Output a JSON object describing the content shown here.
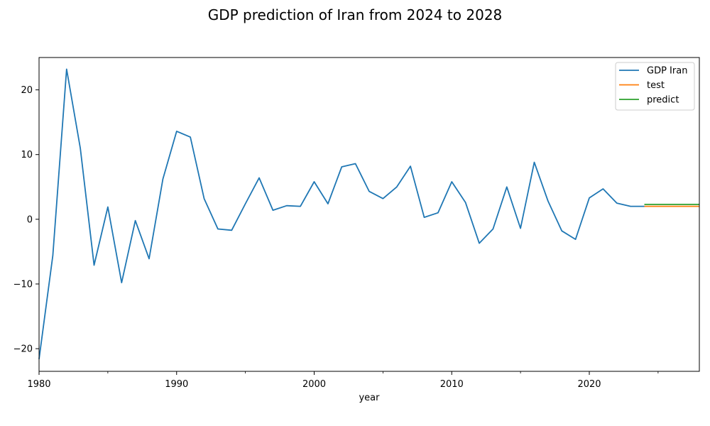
{
  "chart_data": {
    "type": "line",
    "title": "GDP prediction of Iran from 2024 to 2028",
    "xlabel": "year",
    "ylabel": "",
    "xlim": [
      1980,
      2028
    ],
    "ylim": [
      -23.5,
      25
    ],
    "x_ticks": [
      1980,
      1990,
      2000,
      2010,
      2020
    ],
    "x_minor_ticks": [
      1985,
      1995,
      2005,
      2015,
      2025
    ],
    "y_ticks": [
      -20,
      -10,
      0,
      10,
      20
    ],
    "grid": false,
    "legend_position": "top-right",
    "series": [
      {
        "name": "GDP Iran",
        "color": "#1f77b4",
        "x": [
          1980,
          1981,
          1982,
          1983,
          1984,
          1985,
          1986,
          1987,
          1988,
          1989,
          1990,
          1991,
          1992,
          1993,
          1994,
          1995,
          1996,
          1997,
          1998,
          1999,
          2000,
          2001,
          2002,
          2003,
          2004,
          2005,
          2006,
          2007,
          2008,
          2009,
          2010,
          2011,
          2012,
          2013,
          2014,
          2015,
          2016,
          2017,
          2018,
          2019,
          2020,
          2021,
          2022,
          2023,
          2024
        ],
        "values": [
          -21.6,
          -5.6,
          23.2,
          11.0,
          -7.1,
          1.9,
          -9.8,
          -0.2,
          -6.1,
          6.2,
          13.6,
          12.7,
          3.2,
          -1.5,
          -1.7,
          2.4,
          6.4,
          1.4,
          2.1,
          2.0,
          5.8,
          2.4,
          8.1,
          8.6,
          4.3,
          3.2,
          5.0,
          8.2,
          0.3,
          1.0,
          5.8,
          2.6,
          -3.7,
          -1.5,
          5.0,
          -1.4,
          8.8,
          2.8,
          -1.8,
          -3.1,
          3.3,
          4.7,
          2.5,
          2.0,
          2.0
        ]
      },
      {
        "name": "test",
        "color": "#ff7f0e",
        "x": [
          2024,
          2025,
          2026,
          2027,
          2028
        ],
        "values": [
          2.0,
          2.0,
          2.0,
          2.0,
          2.0
        ]
      },
      {
        "name": "predict",
        "color": "#2ca02c",
        "x": [
          2024,
          2025,
          2026,
          2027,
          2028
        ],
        "values": [
          2.3,
          2.3,
          2.3,
          2.3,
          2.3
        ]
      }
    ]
  }
}
